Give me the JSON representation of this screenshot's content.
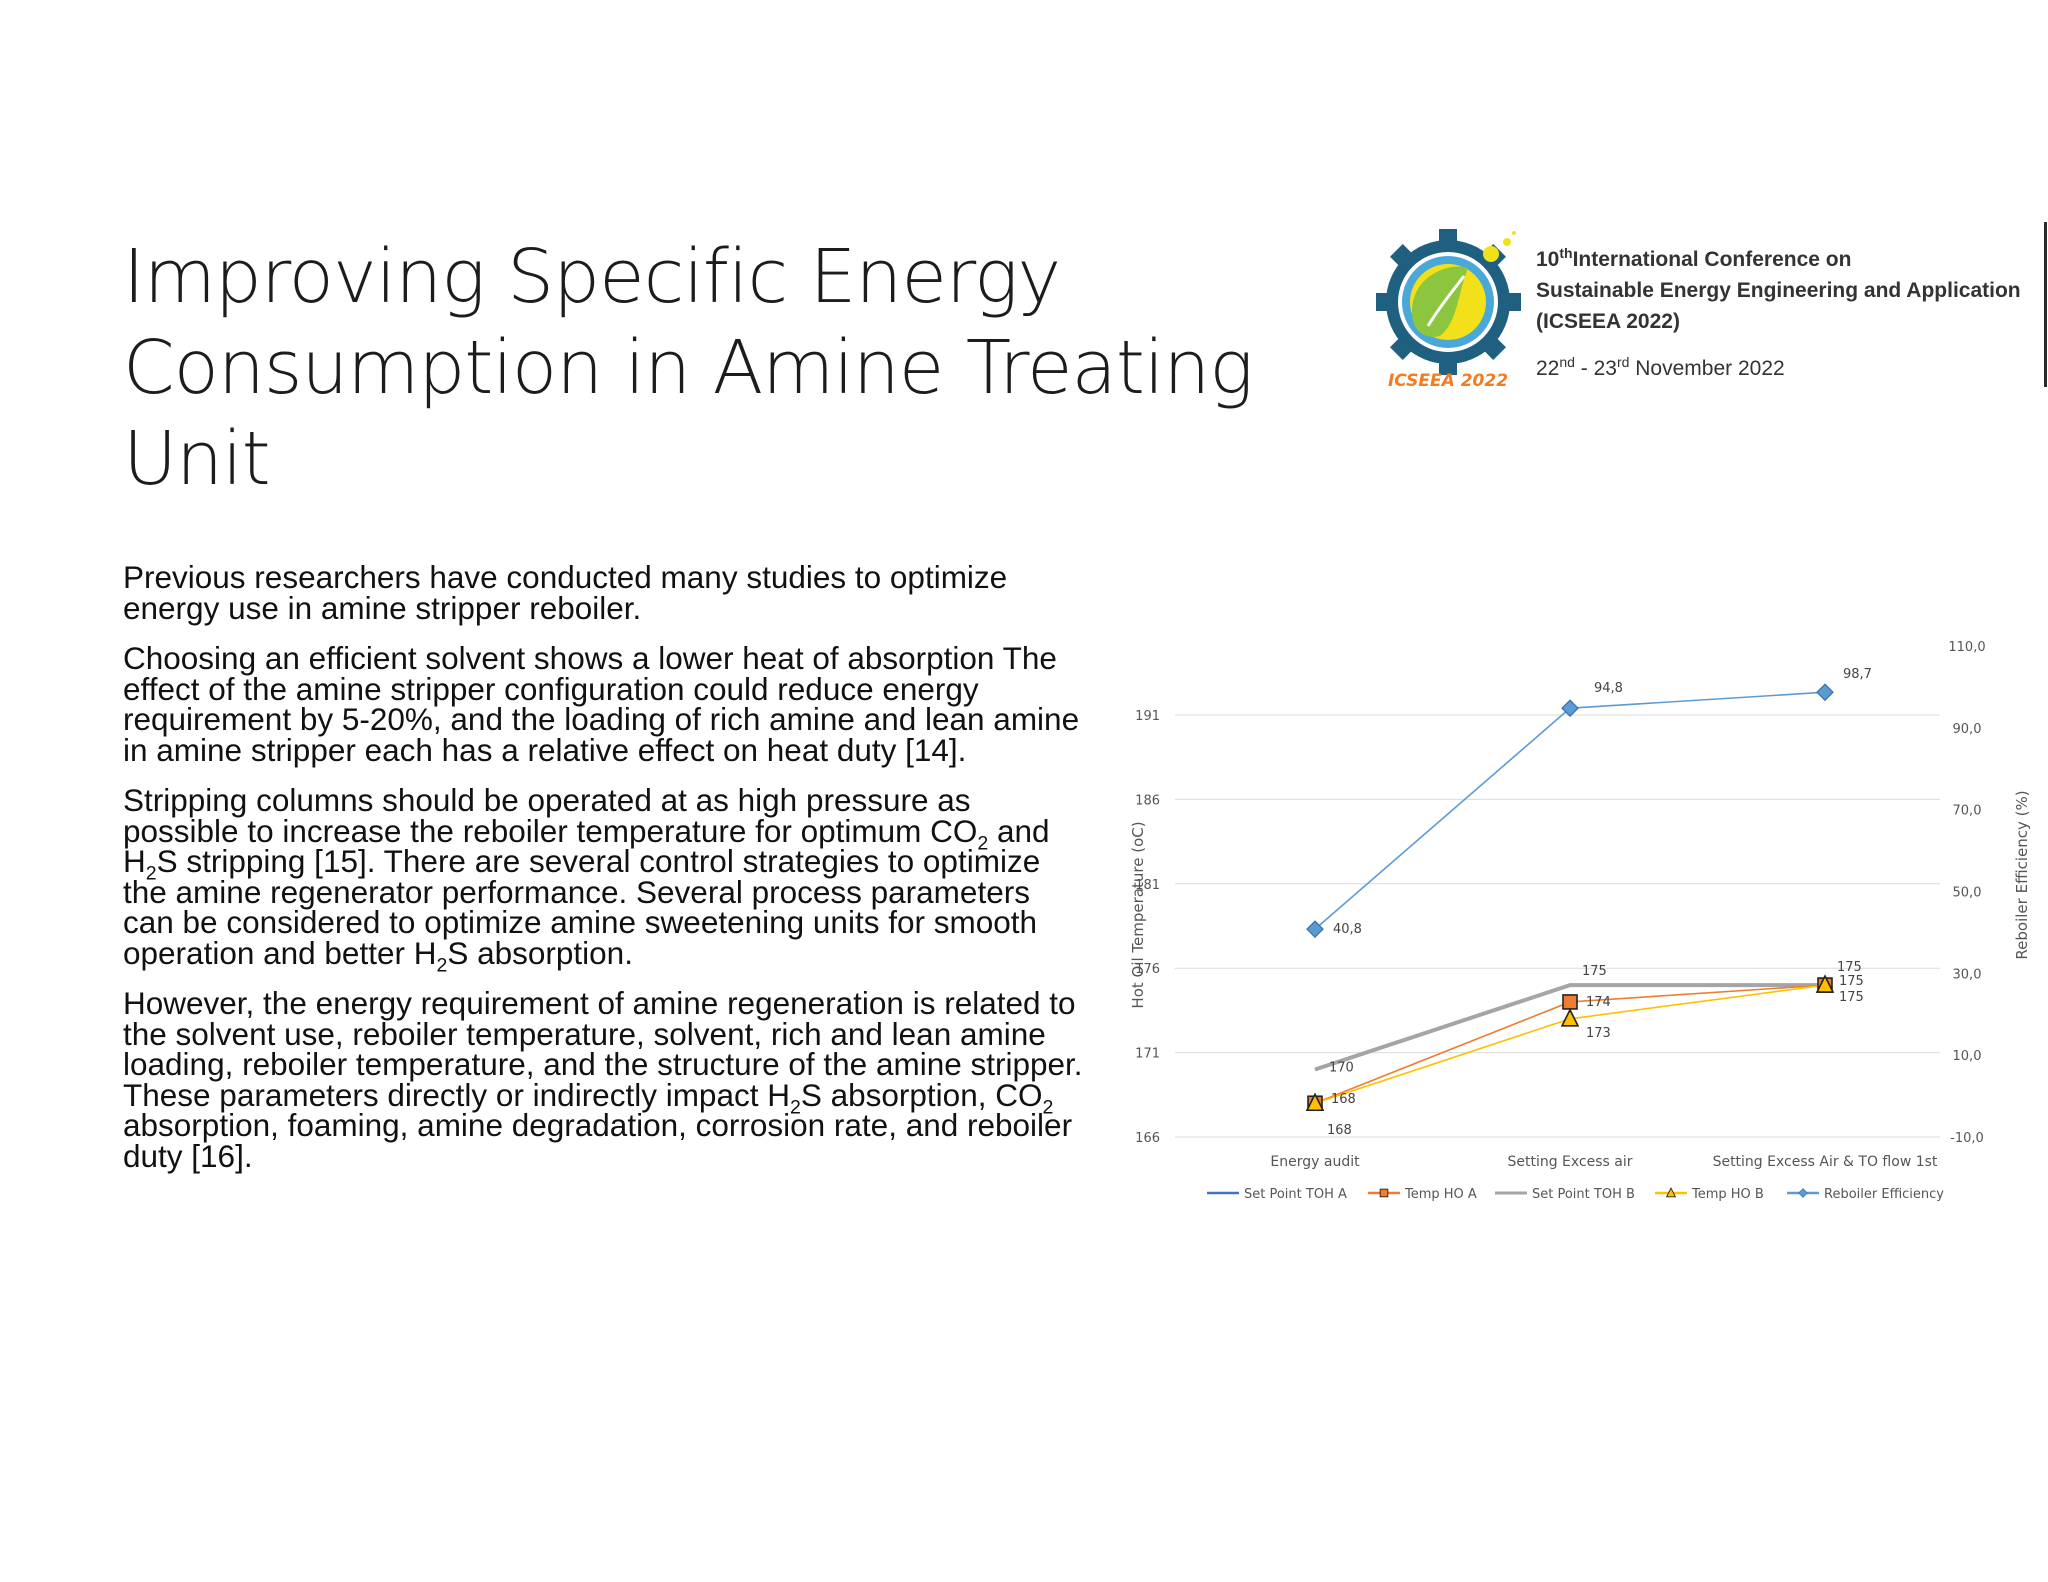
{
  "title_lines": [
    "Improving Specific Energy",
    "Consumption in Amine Treating",
    "Unit"
  ],
  "conference": {
    "line1_num": "10",
    "line1_sup": "th",
    "line1_rest": "International Conference on",
    "line2": "Sustainable Energy Engineering and Application",
    "line3": "(ICSEEA 2022)",
    "date_a": "22",
    "date_a_sup": "nd",
    "date_mid": " - 23",
    "date_b_sup": "rd",
    "date_rest": " November 2022",
    "logo_text": "ICSEEA 2022",
    "colors": {
      "gear": "#1f5f80",
      "ring": "#4aa8d8",
      "leaf": "#8cc63f",
      "sun": "#f2e01b",
      "logo_text": "#f47b20"
    }
  },
  "paragraphs": {
    "p1": "Previous researchers have conducted many studies to optimize energy use in amine stripper reboiler.",
    "p2": "Choosing an efficient solvent shows a lower heat of absorption The effect of the amine stripper configuration could reduce energy requirement by 5-20%, and the loading of rich amine and lean amine in amine stripper each has a relative effect on heat duty [14].",
    "p3a": "Stripping columns should be operated at as high pressure as possible to increase the reboiler temperature for optimum CO",
    "p3b": "2",
    "p3c": " and H",
    "p3d": "2",
    "p3e": "S stripping [15]. There are several control strategies to optimize the amine regenerator performance. Several process parameters can be considered to optimize amine sweetening units for smooth operation and better H",
    "p3f": "2",
    "p3g": "S absorption.",
    "p4a": "However, the energy requirement of amine regeneration is related to the solvent use, reboiler temperature, solvent, rich and lean amine loading, reboiler temperature, and the structure of the amine stripper. These parameters directly or indirectly impact H",
    "p4b": "2",
    "p4c": "S absorption, CO",
    "p4d": "2",
    "p4e": " absorption, foaming, amine degradation, corrosion rate, and reboiler duty [16]."
  },
  "chart_data": {
    "type": "line",
    "categories": [
      "Energy audit",
      "Setting Excess air",
      "Setting Excess Air & TO flow 1st"
    ],
    "ylabel": "Hot Oil Temperature (oC)",
    "y2label": "Reboiler Efficiency (%)",
    "ylim": [
      166,
      191
    ],
    "y_ticks": [
      "166",
      "171",
      "176",
      "181",
      "186",
      "191"
    ],
    "y2lim": [
      -10,
      110
    ],
    "y2_ticks": [
      "-10,0",
      "10,0",
      "30,0",
      "50,0",
      "70,0",
      "90,0",
      "110,0"
    ],
    "grid": true,
    "legend_position": "bottom",
    "series": [
      {
        "name": "Set Point TOH A",
        "axis": "left",
        "values": [
          170,
          175,
          175
        ],
        "labels": [],
        "color": "#4472c4",
        "marker": "none"
      },
      {
        "name": "Temp HO A",
        "axis": "left",
        "values": [
          168,
          174,
          175
        ],
        "labels": [
          "",
          "174",
          "175"
        ],
        "color": "#ed7d31",
        "marker": "square"
      },
      {
        "name": "Set Point TOH B",
        "axis": "left",
        "values": [
          170,
          175,
          175
        ],
        "labels": [
          "170",
          "175",
          "175"
        ],
        "color": "#a5a5a5",
        "marker": "none"
      },
      {
        "name": "Temp HO B",
        "axis": "left",
        "values": [
          168,
          173,
          175
        ],
        "labels": [
          "168",
          "173",
          "175"
        ],
        "color": "#ffc000",
        "marker": "triangle"
      },
      {
        "name": "Reboiler Efficiency",
        "axis": "right",
        "values": [
          40.8,
          94.8,
          98.7
        ],
        "labels": [
          "40,8",
          "94,8",
          "98,7"
        ],
        "color": "#5b9bd5",
        "marker": "diamond"
      }
    ],
    "extra_labels": [
      "168"
    ]
  }
}
